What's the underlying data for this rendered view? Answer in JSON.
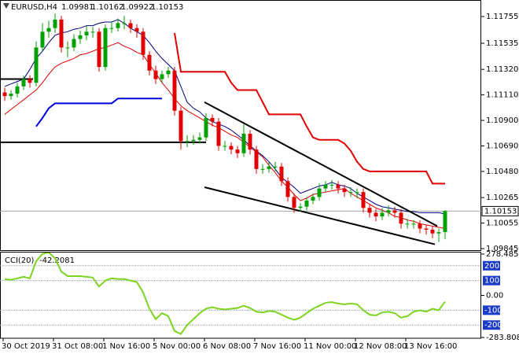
{
  "chart_data": [
    {
      "type": "candlestick",
      "symbol": "EURUSD,H4",
      "up_color": "#00a000",
      "down_color": "#e00000",
      "candles": [
        [
          1.1113,
          1.1117,
          1.1106,
          1.111
        ],
        [
          1.111,
          1.1115,
          1.1107,
          1.1112
        ],
        [
          1.1112,
          1.1121,
          1.1109,
          1.1118
        ],
        [
          1.1118,
          1.1127,
          1.1115,
          1.1124
        ],
        [
          1.1124,
          1.1127,
          1.1117,
          1.1121
        ],
        [
          1.1121,
          1.1155,
          1.1118,
          1.115
        ],
        [
          1.115,
          1.117,
          1.1147,
          1.1163
        ],
        [
          1.1163,
          1.1172,
          1.1158,
          1.1166
        ],
        [
          1.1166,
          1.1178,
          1.1162,
          1.1173
        ],
        [
          1.1173,
          1.1176,
          1.1146,
          1.115
        ],
        [
          1.115,
          1.1155,
          1.1142,
          1.115
        ],
        [
          1.115,
          1.1161,
          1.1147,
          1.1157
        ],
        [
          1.1157,
          1.1164,
          1.1153,
          1.116
        ],
        [
          1.116,
          1.1168,
          1.1156,
          1.1163
        ],
        [
          1.1163,
          1.1167,
          1.1158,
          1.1163
        ],
        [
          1.1163,
          1.1166,
          1.113,
          1.1134
        ],
        [
          1.1134,
          1.1169,
          1.1131,
          1.1166
        ],
        [
          1.1166,
          1.1171,
          1.1162,
          1.1166
        ],
        [
          1.1166,
          1.1174,
          1.1163,
          1.117
        ],
        [
          1.117,
          1.1176,
          1.1165,
          1.117
        ],
        [
          1.117,
          1.1173,
          1.1162,
          1.1166
        ],
        [
          1.1166,
          1.1169,
          1.1158,
          1.1163
        ],
        [
          1.1163,
          1.1166,
          1.114,
          1.1144
        ],
        [
          1.1144,
          1.1147,
          1.1127,
          1.1131
        ],
        [
          1.1131,
          1.1135,
          1.112,
          1.1124
        ],
        [
          1.1124,
          1.1131,
          1.1121,
          1.1128
        ],
        [
          1.1128,
          1.1134,
          1.1125,
          1.1131
        ],
        [
          1.1131,
          1.1134,
          1.1094,
          1.1098
        ],
        [
          1.1098,
          1.1101,
          1.1066,
          1.1073
        ],
        [
          1.1073,
          1.1078,
          1.1068,
          1.1073
        ],
        [
          1.1073,
          1.1078,
          1.107,
          1.1074
        ],
        [
          1.1074,
          1.108,
          1.1071,
          1.1076
        ],
        [
          1.1076,
          1.1096,
          1.1073,
          1.1092
        ],
        [
          1.1092,
          1.1095,
          1.1085,
          1.1089
        ],
        [
          1.1089,
          1.1092,
          1.1065,
          1.1069
        ],
        [
          1.1069,
          1.1073,
          1.1065,
          1.1069
        ],
        [
          1.1069,
          1.1072,
          1.1062,
          1.1066
        ],
        [
          1.1066,
          1.1069,
          1.1059,
          1.1063
        ],
        [
          1.1063,
          1.1087,
          1.106,
          1.1079
        ],
        [
          1.1079,
          1.1082,
          1.1062,
          1.1066
        ],
        [
          1.1066,
          1.1069,
          1.1046,
          1.105
        ],
        [
          1.105,
          1.1054,
          1.1046,
          1.105
        ],
        [
          1.105,
          1.1056,
          1.1047,
          1.1052
        ],
        [
          1.1052,
          1.1056,
          1.1048,
          1.1052
        ],
        [
          1.1052,
          1.1055,
          1.1036,
          1.104
        ],
        [
          1.104,
          1.1043,
          1.1023,
          1.1027
        ],
        [
          1.1027,
          1.103,
          1.1014,
          1.1018
        ],
        [
          1.1018,
          1.1022,
          1.1015,
          1.1019
        ],
        [
          1.1019,
          1.1027,
          1.1016,
          1.1024
        ],
        [
          1.1024,
          1.103,
          1.1021,
          1.1027
        ],
        [
          1.1027,
          1.1038,
          1.1024,
          1.1034
        ],
        [
          1.1034,
          1.104,
          1.1031,
          1.1037
        ],
        [
          1.1037,
          1.1041,
          1.1033,
          1.1037
        ],
        [
          1.1037,
          1.104,
          1.103,
          1.1034
        ],
        [
          1.1034,
          1.1037,
          1.1027,
          1.1031
        ],
        [
          1.1031,
          1.1035,
          1.1027,
          1.1031
        ],
        [
          1.1031,
          1.1034,
          1.1026,
          1.1031
        ],
        [
          1.1031,
          1.1034,
          1.1014,
          1.1018
        ],
        [
          1.1018,
          1.1021,
          1.101,
          1.1014
        ],
        [
          1.1014,
          1.1017,
          1.1007,
          1.1011
        ],
        [
          1.1011,
          1.1018,
          1.1008,
          1.1014
        ],
        [
          1.1014,
          1.102,
          1.1011,
          1.1016
        ],
        [
          1.1016,
          1.1019,
          1.101,
          1.1014
        ],
        [
          1.1014,
          1.1017,
          1.1001,
          1.1005
        ],
        [
          1.1005,
          1.1009,
          1.1001,
          1.1005
        ],
        [
          1.1005,
          1.1008,
          1.1001,
          1.1005
        ],
        [
          1.1005,
          1.1008,
          1.0997,
          1.1001
        ],
        [
          1.1001,
          1.1004,
          1.0996,
          1.1
        ],
        [
          1.1,
          1.1003,
          1.0993,
          1.0997
        ],
        [
          1.0997,
          1.1001,
          1.099,
          1.0998
        ],
        [
          1.09981,
          1.10162,
          1.09922,
          1.10153
        ]
      ],
      "series": [
        {
          "color": "#e00000",
          "width": 1,
          "values": [
            1.1095,
            1.1099,
            1.1103,
            1.1107,
            1.1111,
            1.1115,
            1.1121,
            1.1128,
            1.1134,
            1.1137,
            1.1139,
            1.1141,
            1.1144,
            1.1145,
            1.1147,
            1.1149,
            1.115,
            1.1152,
            1.1154,
            1.1151,
            1.1149,
            1.1146,
            1.1144,
            1.1136,
            1.1129,
            1.1121,
            1.1115,
            1.1108,
            1.1102,
            1.1098,
            1.1095,
            1.1092,
            1.1089,
            1.1086,
            1.1084,
            1.1081,
            1.1078,
            1.1076,
            1.1072,
            1.1068,
            1.1064,
            1.106,
            1.1053,
            1.1047,
            1.104,
            1.1035,
            1.1029,
            1.1024,
            1.1026,
            1.1029,
            1.103,
            1.1031,
            1.1032,
            1.1033,
            1.1034,
            1.103,
            1.1027,
            1.1024,
            1.1021,
            1.1018,
            1.1016,
            1.1014,
            1.1011,
            1.101,
            1.1008,
            1.1007,
            1.1005,
            1.1004,
            1.1003,
            1.1002,
            1.1001
          ]
        },
        {
          "color": "#000080",
          "width": 1,
          "values": [
            1.1118,
            1.112,
            1.1122,
            1.1124,
            1.1132,
            1.1141,
            1.1147,
            1.1154,
            1.116,
            1.1162,
            1.1163,
            1.1165,
            1.1166,
            1.1168,
            1.1168,
            1.117,
            1.1171,
            1.1171,
            1.1173,
            1.117,
            1.1166,
            1.1163,
            1.116,
            1.1154,
            1.1147,
            1.1141,
            1.1136,
            1.1131,
            1.1118,
            1.1105,
            1.11,
            1.1097,
            1.1092,
            1.1089,
            1.1087,
            1.1085,
            1.1082,
            1.1078,
            1.1074,
            1.1069,
            1.1065,
            1.1061,
            1.1056,
            1.105,
            1.1043,
            1.1039,
            1.1035,
            1.103,
            1.1032,
            1.1034,
            1.1036,
            1.1037,
            1.1039,
            1.1037,
            1.1036,
            1.1034,
            1.103,
            1.1027,
            1.1024,
            1.1021,
            1.1019,
            1.1018,
            1.1017,
            1.1016,
            1.1015,
            1.1015,
            1.1014,
            1.1014,
            1.1014,
            1.1014,
            1.1013
          ]
        },
        {
          "color": "#e00000",
          "width": 2,
          "values": [
            null,
            null,
            null,
            null,
            null,
            null,
            null,
            null,
            null,
            null,
            null,
            null,
            null,
            null,
            null,
            null,
            null,
            null,
            null,
            null,
            null,
            null,
            null,
            null,
            null,
            null,
            null,
            1.1162,
            1.113,
            1.113,
            1.113,
            1.113,
            1.113,
            1.113,
            1.113,
            1.113,
            1.1121,
            1.1115,
            1.1115,
            1.1115,
            1.1115,
            1.1105,
            1.1095,
            1.1095,
            1.1095,
            1.1095,
            1.1095,
            1.1095,
            1.1085,
            1.1076,
            1.1074,
            1.1074,
            1.1074,
            1.1074,
            1.1071,
            1.1065,
            1.1056,
            1.105,
            1.1048,
            1.1048,
            1.1048,
            1.1048,
            1.1048,
            1.1048,
            1.1048,
            1.1048,
            1.1048,
            1.1048,
            1.1038,
            1.1038,
            1.1038
          ]
        },
        {
          "color": "#0000e0",
          "width": 2,
          "values": [
            null,
            null,
            null,
            null,
            null,
            1.1085,
            1.1092,
            1.11,
            1.1104,
            1.1104,
            1.1104,
            1.1104,
            1.1104,
            1.1104,
            1.1104,
            1.1104,
            1.1104,
            1.1104,
            1.1108,
            1.1108,
            1.1108,
            1.1108,
            1.1108,
            1.1108,
            1.1108,
            1.1108,
            null,
            null,
            null,
            null,
            null,
            null,
            null,
            null,
            null,
            null,
            null,
            null,
            null,
            null,
            null,
            null,
            null,
            null,
            null,
            null,
            null,
            null,
            null,
            null,
            null,
            null,
            null,
            null,
            null,
            null,
            null,
            null,
            null,
            null,
            null,
            null,
            null,
            null,
            null,
            null,
            null,
            null,
            null,
            null,
            null
          ]
        }
      ],
      "hlines": [
        1.1124,
        1.1072
      ],
      "trendlines": [
        [
          1.1105,
          1.1003
        ],
        [
          1.1035,
          1.0988
        ]
      ],
      "ylim": [
        1.09832,
        1.11891
      ],
      "yticks": [
        1.11755,
        1.11535,
        {
          "value": 1.1132,
          "label": "1.11320"
        },
        {
          "value": 1.1111,
          "label": "1.11110"
        },
        {
          "value": 1.109,
          "label": "1.10900"
        },
        {
          "value": 1.1069,
          "label": "1.10690"
        },
        {
          "value": 1.1048,
          "label": "1.10480"
        },
        1.10265,
        1.10055,
        1.09845
      ],
      "time_labels": [
        "30 Oct 2019",
        "31 Oct 08:00",
        "1 Nov 16:00",
        "5 Nov 00:00",
        "6 Nov 08:00",
        "7 Nov 16:00",
        "11 Nov 00:00",
        "12 Nov 08:00",
        "13 Nov 16:00"
      ]
    },
    {
      "type": "line",
      "name": "CCI(20)",
      "color": "#7fd321",
      "values": [
        110,
        105,
        115,
        125,
        115,
        230,
        280,
        290,
        250,
        160,
        130,
        130,
        130,
        125,
        120,
        60,
        100,
        115,
        110,
        110,
        100,
        90,
        20,
        -90,
        -160,
        -120,
        -140,
        -240,
        -260,
        -200,
        -160,
        -120,
        -90,
        -80,
        -90,
        -95,
        -90,
        -85,
        -70,
        -85,
        -110,
        -115,
        -105,
        -110,
        -130,
        -150,
        -165,
        -150,
        -120,
        -90,
        -70,
        -50,
        -45,
        -55,
        -60,
        -55,
        -60,
        -100,
        -130,
        -135,
        -115,
        -110,
        -120,
        -150,
        -140,
        -110,
        -100,
        -110,
        -90,
        -100,
        -42.2081
      ],
      "ylim": [
        -283.8085,
        278.4853
      ],
      "yticks": [
        278.4853,
        {
          "value": 0,
          "label": "0.00"
        },
        -283.8085
      ],
      "levels": [
        200,
        100,
        -100,
        -200
      ],
      "level_color": "#1a3cc8"
    }
  ]
}
